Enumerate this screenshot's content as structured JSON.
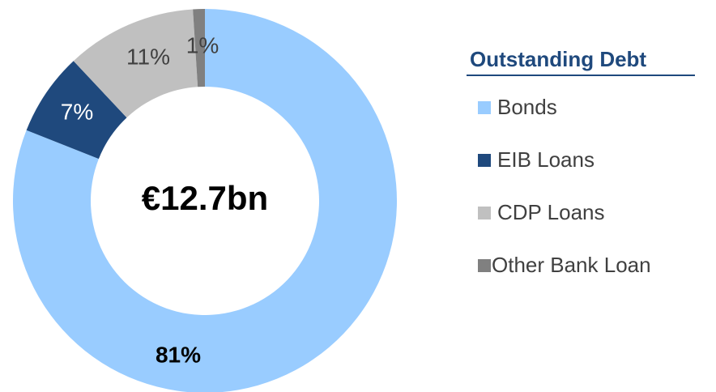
{
  "chart_data": {
    "type": "donut",
    "center_label": "€12.7bn",
    "legend_title": "Outstanding Debt",
    "categories": [
      "Bonds",
      "EIB Loans",
      "CDP Loans",
      "Other Bank Loan"
    ],
    "values": [
      81,
      7,
      11,
      1
    ],
    "value_labels": [
      "81%",
      "7%",
      "11%",
      "1%"
    ],
    "colors": [
      "#99ccff",
      "#1f497d",
      "#c0c0c0",
      "#808080"
    ]
  }
}
